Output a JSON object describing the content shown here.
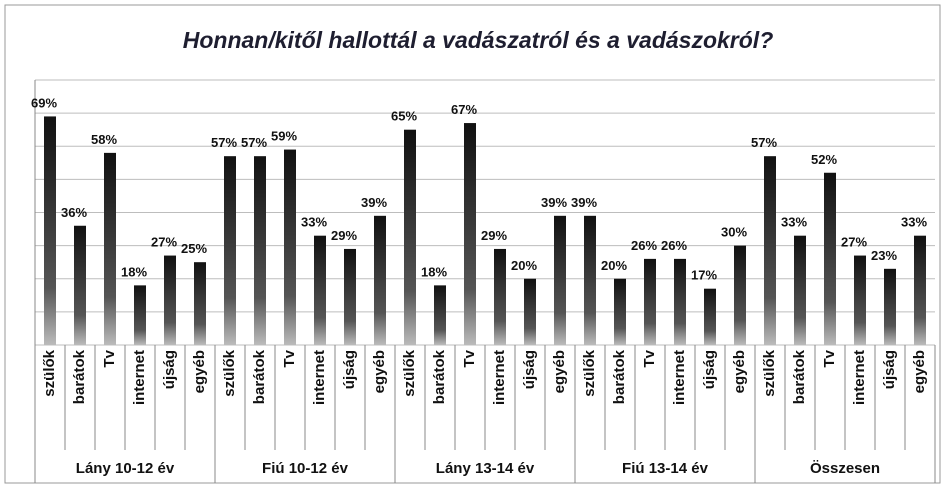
{
  "chart_data": {
    "type": "bar",
    "title": "Honnan/kitől hallottál a vadászatról és a vadászokról?",
    "ylim": [
      0,
      80
    ],
    "yticks": [
      0,
      10,
      20,
      30,
      40,
      50,
      60,
      70,
      80
    ],
    "grid": true,
    "color": "#2a2a2a",
    "groups": [
      {
        "name": "Lány 10-12 év",
        "categories": [
          "szülők",
          "barátok",
          "Tv",
          "internet",
          "újság",
          "egyéb"
        ],
        "values": [
          69,
          36,
          58,
          18,
          27,
          25
        ],
        "value_labels": [
          "69%",
          "36%",
          "58%",
          "18%",
          "27%",
          "25%"
        ]
      },
      {
        "name": "Fiú 10-12 év",
        "categories": [
          "szülők",
          "barátok",
          "Tv",
          "internet",
          "újság",
          "egyéb"
        ],
        "values": [
          57,
          57,
          59,
          33,
          29,
          39
        ],
        "value_labels": [
          "57%",
          "57%",
          "59%",
          "33%",
          "29%",
          "39%"
        ]
      },
      {
        "name": "Lány 13-14 év",
        "categories": [
          "szülők",
          "barátok",
          "Tv",
          "internet",
          "újság",
          "egyéb"
        ],
        "values": [
          65,
          18,
          67,
          29,
          20,
          39
        ],
        "value_labels": [
          "65%",
          "18%",
          "67%",
          "29%",
          "20%",
          "39%"
        ]
      },
      {
        "name": "Fiú 13-14 év",
        "categories": [
          "szülők",
          "barátok",
          "Tv",
          "internet",
          "újság",
          "egyéb"
        ],
        "values": [
          39,
          20,
          26,
          26,
          17,
          30
        ],
        "value_labels": [
          "39%",
          "20%",
          "26%",
          "26%",
          "17%",
          "30%"
        ]
      },
      {
        "name": "Összesen",
        "categories": [
          "szülők",
          "barátok",
          "Tv",
          "internet",
          "újság",
          "egyéb"
        ],
        "values": [
          57,
          33,
          52,
          27,
          23,
          33
        ],
        "value_labels": [
          "57%",
          "33%",
          "52%",
          "27%",
          "23%",
          "33%"
        ]
      }
    ]
  }
}
